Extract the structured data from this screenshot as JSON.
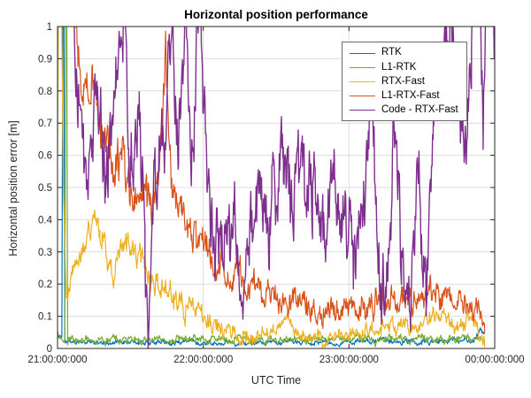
{
  "chart_data": {
    "type": "line",
    "title": "Horizontal position performance",
    "xlabel": "UTC Time",
    "ylabel": "Horizontal position error [m]",
    "x_unit": "hours_after_21:00:00:000_UTC",
    "xlim": [
      0,
      3
    ],
    "ylim": [
      0,
      1
    ],
    "grid": true,
    "legend_position": "top-right",
    "colors": {
      "axis": "#262626",
      "grid": "#dcdcdc",
      "background": "#ffffff"
    },
    "xticks": [
      {
        "t": 0,
        "label": "21:00:00:000"
      },
      {
        "t": 1,
        "label": "22:00:00:000"
      },
      {
        "t": 2,
        "label": "23:00:00:000"
      },
      {
        "t": 3,
        "label": "00:00:00:000"
      }
    ],
    "yticks": [
      {
        "v": 0.0,
        "label": "0"
      },
      {
        "v": 0.1,
        "label": "0.1"
      },
      {
        "v": 0.2,
        "label": "0.2"
      },
      {
        "v": 0.3,
        "label": "0.3"
      },
      {
        "v": 0.4,
        "label": "0.4"
      },
      {
        "v": 0.5,
        "label": "0.5"
      },
      {
        "v": 0.6,
        "label": "0.6"
      },
      {
        "v": 0.7,
        "label": "0.7"
      },
      {
        "v": 0.8,
        "label": "0.8"
      },
      {
        "v": 0.9,
        "label": "0.9"
      },
      {
        "v": 1.0,
        "label": "1"
      }
    ],
    "series": [
      {
        "name": "RTK",
        "color": "#0072BD",
        "noise": [
          [
            0,
            0.006
          ],
          [
            3,
            0.006
          ]
        ],
        "keypoints": [
          [
            0.0,
            0.05
          ],
          [
            0.03,
            0.03
          ],
          [
            0.04,
            1.6
          ],
          [
            0.05,
            0.02
          ],
          [
            0.5,
            0.018
          ],
          [
            1.0,
            0.02
          ],
          [
            1.5,
            0.018
          ],
          [
            2.0,
            0.02
          ],
          [
            2.5,
            0.022
          ],
          [
            2.85,
            0.025
          ],
          [
            2.9,
            0.055
          ],
          [
            2.93,
            0.05
          ]
        ]
      },
      {
        "name": "L1-RTK",
        "color": "#77AC30",
        "noise": [
          [
            0,
            0.009
          ],
          [
            3,
            0.009
          ]
        ],
        "keypoints": [
          [
            0.0,
            0.05
          ],
          [
            0.05,
            0.03
          ],
          [
            0.06,
            1.6
          ],
          [
            0.07,
            0.028
          ],
          [
            0.5,
            0.025
          ],
          [
            1.2,
            0.028
          ],
          [
            1.26,
            0.045
          ],
          [
            1.35,
            0.028
          ],
          [
            2.0,
            0.028
          ],
          [
            2.5,
            0.032
          ],
          [
            2.93,
            0.03
          ]
        ]
      },
      {
        "name": "RTX-Fast",
        "color": "#EDB120",
        "noise": [
          [
            0,
            0.02
          ],
          [
            0.3,
            0.035
          ],
          [
            1.0,
            0.025
          ],
          [
            1.5,
            0.015
          ],
          [
            3,
            0.02
          ]
        ],
        "keypoints": [
          [
            0.0,
            0.6
          ],
          [
            0.015,
            1.6
          ],
          [
            0.04,
            0.5
          ],
          [
            0.06,
            0.15
          ],
          [
            0.12,
            0.22
          ],
          [
            0.25,
            0.4
          ],
          [
            0.32,
            0.34
          ],
          [
            0.38,
            0.23
          ],
          [
            0.46,
            0.32
          ],
          [
            0.55,
            0.28
          ],
          [
            0.68,
            0.21
          ],
          [
            0.8,
            0.15
          ],
          [
            0.95,
            0.11
          ],
          [
            1.05,
            0.08
          ],
          [
            1.2,
            0.05
          ],
          [
            1.35,
            0.03
          ],
          [
            1.5,
            0.06
          ],
          [
            1.58,
            0.1
          ],
          [
            1.68,
            0.04
          ],
          [
            1.85,
            0.03
          ],
          [
            2.0,
            0.04
          ],
          [
            2.15,
            0.06
          ],
          [
            2.3,
            0.07
          ],
          [
            2.45,
            0.05
          ],
          [
            2.55,
            0.09
          ],
          [
            2.65,
            0.11
          ],
          [
            2.75,
            0.07
          ],
          [
            2.85,
            0.1
          ],
          [
            2.9,
            0.05
          ],
          [
            2.93,
            0.02
          ]
        ]
      },
      {
        "name": "L1-RTX-Fast",
        "color": "#D95319",
        "noise": [
          [
            0,
            0.06
          ],
          [
            0.8,
            0.05
          ],
          [
            1.2,
            0.035
          ],
          [
            3,
            0.03
          ]
        ],
        "keypoints": [
          [
            0.0,
            1.3
          ],
          [
            0.1,
            1.2
          ],
          [
            0.14,
            0.95
          ],
          [
            0.18,
            0.8
          ],
          [
            0.24,
            0.85
          ],
          [
            0.3,
            0.63
          ],
          [
            0.38,
            0.6
          ],
          [
            0.48,
            0.52
          ],
          [
            0.58,
            0.45
          ],
          [
            0.65,
            0.42
          ],
          [
            0.72,
            0.72
          ],
          [
            0.74,
            0.95
          ],
          [
            0.78,
            0.5
          ],
          [
            0.85,
            0.42
          ],
          [
            0.95,
            0.33
          ],
          [
            1.05,
            0.28
          ],
          [
            1.2,
            0.22
          ],
          [
            1.4,
            0.18
          ],
          [
            1.6,
            0.15
          ],
          [
            1.8,
            0.13
          ],
          [
            2.0,
            0.13
          ],
          [
            2.2,
            0.14
          ],
          [
            2.4,
            0.15
          ],
          [
            2.6,
            0.17
          ],
          [
            2.75,
            0.16
          ],
          [
            2.85,
            0.13
          ],
          [
            2.9,
            0.1
          ],
          [
            2.93,
            0.07
          ]
        ]
      },
      {
        "name": "Code - RTX-Fast",
        "color": "#7E2F8E",
        "noise": [
          [
            0,
            0.09
          ],
          [
            3,
            0.1
          ]
        ],
        "keypoints": [
          [
            0.0,
            1.4
          ],
          [
            0.1,
            1.1
          ],
          [
            0.14,
            0.8
          ],
          [
            0.2,
            0.5
          ],
          [
            0.27,
            0.92
          ],
          [
            0.33,
            0.55
          ],
          [
            0.4,
            0.72
          ],
          [
            0.45,
            0.97
          ],
          [
            0.5,
            0.55
          ],
          [
            0.56,
            0.78
          ],
          [
            0.6,
            0.35
          ],
          [
            0.63,
            0.08
          ],
          [
            0.67,
            0.5
          ],
          [
            0.73,
            0.62
          ],
          [
            0.78,
            0.95
          ],
          [
            0.83,
            0.7
          ],
          [
            0.88,
            1.1
          ],
          [
            0.92,
            0.5
          ],
          [
            0.98,
            1.15
          ],
          [
            1.03,
            0.4
          ],
          [
            1.1,
            0.32
          ],
          [
            1.18,
            0.45
          ],
          [
            1.25,
            0.3
          ],
          [
            1.32,
            0.42
          ],
          [
            1.4,
            0.52
          ],
          [
            1.47,
            0.4
          ],
          [
            1.55,
            0.6
          ],
          [
            1.62,
            0.45
          ],
          [
            1.68,
            0.62
          ],
          [
            1.75,
            0.45
          ],
          [
            1.82,
            0.38
          ],
          [
            1.9,
            0.5
          ],
          [
            1.98,
            0.42
          ],
          [
            2.03,
            0.25
          ],
          [
            2.1,
            0.45
          ],
          [
            2.15,
            0.72
          ],
          [
            2.2,
            0.3
          ],
          [
            2.25,
            0.08
          ],
          [
            2.3,
            0.6
          ],
          [
            2.36,
            0.3
          ],
          [
            2.42,
            0.08
          ],
          [
            2.48,
            0.55
          ],
          [
            2.53,
            0.12
          ],
          [
            2.58,
            0.72
          ],
          [
            2.65,
            0.82
          ],
          [
            2.7,
            1.1
          ],
          [
            2.74,
            0.75
          ],
          [
            2.8,
            0.68
          ],
          [
            2.84,
            0.95
          ],
          [
            2.88,
            1.25
          ],
          [
            2.92,
            0.72
          ],
          [
            2.96,
            1.35
          ],
          [
            3.0,
            0.95
          ]
        ]
      }
    ]
  }
}
